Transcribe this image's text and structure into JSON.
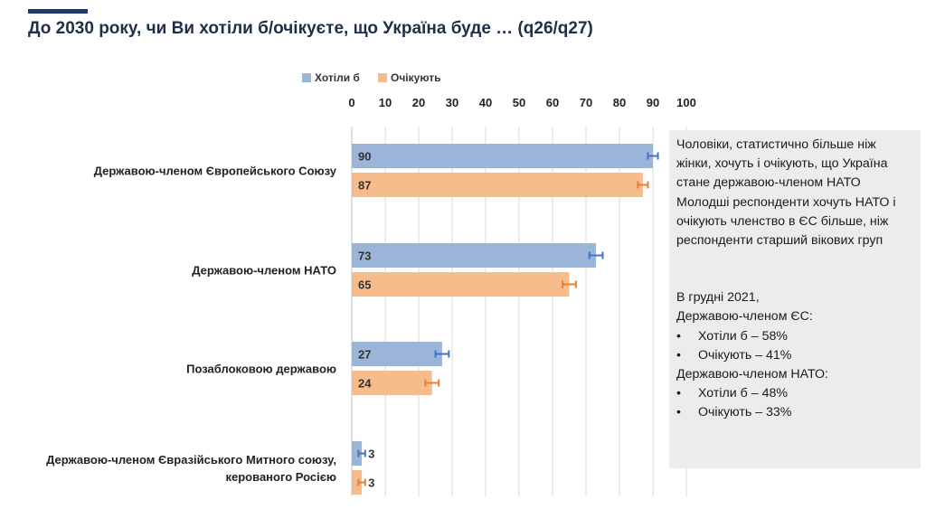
{
  "title": "До 2030 року, чи Ви хотіли б/очікуєте, що Україна буде … (q26/q27)",
  "colors": {
    "accent": "#1f3864",
    "series1": "#9bb5d8",
    "series2": "#f6bc8c",
    "err1": "#4472c4",
    "err2": "#ed7d31",
    "grid": "#d9d9d9"
  },
  "chart_data": {
    "type": "bar",
    "orientation": "horizontal",
    "categories": [
      [
        "Державою-членом Європейського Союзу"
      ],
      [
        "Державою-членом НАТО"
      ],
      [
        "Позаблоковою державою"
      ],
      [
        "Державою-членом Євразійського Митного союзу,",
        "керованого Росією"
      ]
    ],
    "series": [
      {
        "name": "Хотіли б",
        "values": [
          90,
          73,
          27,
          3
        ],
        "error": [
          1.5,
          2,
          2,
          1
        ]
      },
      {
        "name": "Очікують",
        "values": [
          87,
          65,
          24,
          3
        ],
        "error": [
          1.5,
          2,
          2,
          1
        ]
      }
    ],
    "xlim": [
      0,
      100
    ],
    "ticks": [
      0,
      10,
      20,
      30,
      40,
      50,
      60,
      70,
      80,
      90,
      100
    ],
    "legend": "top",
    "grid": true
  },
  "info": {
    "paragraphs": [
      "Чоловіки, статистично більше ніж жінки, хочуть і очікують, що Україна стане державою-членом НАТО",
      "Молодші респонденти хочуть НАТО і очікують членство в ЄС більше, ніж респонденти старший вікових груп"
    ],
    "dec_intro": "В грудні 2021,",
    "eu_heading": "Державою-членом ЄС:",
    "eu_items": [
      "Хотіли б – 58%",
      "Очікують – 41%"
    ],
    "nato_heading": "Державою-членом НАТО:",
    "nato_items": [
      "Хотіли б – 48%",
      "Очікують – 33%"
    ]
  }
}
